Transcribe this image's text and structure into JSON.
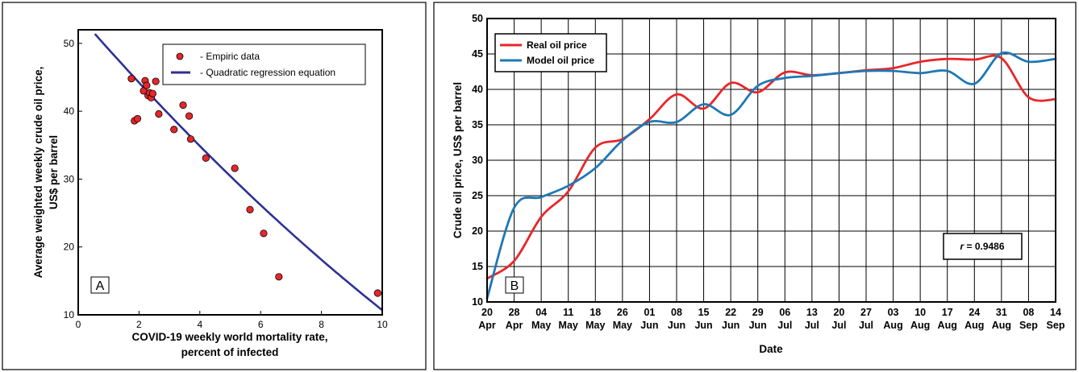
{
  "chart_data": [
    {
      "type": "scatter",
      "panel_label": "A",
      "xlabel_lines": [
        "COVID-19 weekly world mortality rate,",
        "percent of infected"
      ],
      "ylabel_lines": [
        "Average weighted weekly crude oil price,",
        "US$ per barrel"
      ],
      "xlim": [
        0,
        10
      ],
      "ylim": [
        10,
        52
      ],
      "xticks": [
        0,
        2,
        4,
        6,
        8,
        10
      ],
      "yticks": [
        10,
        20,
        30,
        40,
        50
      ],
      "grid": false,
      "legend_position": "top-right",
      "series": [
        {
          "name": "- Empiric data",
          "kind": "markers",
          "color": "#e8262a",
          "points": [
            [
              1.75,
              44.8
            ],
            [
              1.85,
              38.6
            ],
            [
              1.95,
              38.9
            ],
            [
              2.15,
              43.0
            ],
            [
              2.2,
              44.5
            ],
            [
              2.25,
              43.8
            ],
            [
              2.3,
              42.3
            ],
            [
              2.35,
              42.7
            ],
            [
              2.4,
              42.0
            ],
            [
              2.45,
              42.6
            ],
            [
              2.55,
              44.4
            ],
            [
              2.65,
              39.6
            ],
            [
              3.15,
              37.3
            ],
            [
              3.45,
              40.9
            ],
            [
              3.65,
              39.3
            ],
            [
              3.7,
              35.9
            ],
            [
              4.2,
              33.1
            ],
            [
              5.15,
              31.6
            ],
            [
              5.65,
              25.5
            ],
            [
              6.1,
              22.0
            ],
            [
              6.6,
              15.6
            ],
            [
              9.85,
              13.2
            ]
          ]
        },
        {
          "name": "- Quadratic regression equation",
          "kind": "curve",
          "color": "#2e3192",
          "quadratic": {
            "a": 0.08,
            "b": -5.15,
            "c": 54.2
          },
          "x_range": [
            0.55,
            10.0
          ]
        }
      ]
    },
    {
      "type": "line",
      "panel_label": "B",
      "xlabel": "Date",
      "ylabel": "Crude oil price, US$ per barrel",
      "ylim": [
        10,
        50
      ],
      "yticks": [
        10,
        15,
        20,
        25,
        30,
        35,
        40,
        45,
        50
      ],
      "grid": true,
      "legend_position": "top-left",
      "annotation": "r = 0.9486",
      "annotation_prefix": "r",
      "annotation_value": " = 0.9486",
      "categories": [
        [
          "20",
          "Apr"
        ],
        [
          "28",
          "Apr"
        ],
        [
          "04",
          "May"
        ],
        [
          "11",
          "May"
        ],
        [
          "18",
          "May"
        ],
        [
          "26",
          "May"
        ],
        [
          "01",
          "Jun"
        ],
        [
          "08",
          "Jun"
        ],
        [
          "15",
          "Jun"
        ],
        [
          "22",
          "Jun"
        ],
        [
          "29",
          "Jun"
        ],
        [
          "06",
          "Jul"
        ],
        [
          "13",
          "Jul"
        ],
        [
          "20",
          "Jul"
        ],
        [
          "27",
          "Jul"
        ],
        [
          "03",
          "Aug"
        ],
        [
          "10",
          "Aug"
        ],
        [
          "17",
          "Aug"
        ],
        [
          "24",
          "Aug"
        ],
        [
          "31",
          "Aug"
        ],
        [
          "08",
          "Sep"
        ],
        [
          "14",
          "Sep"
        ]
      ],
      "series": [
        {
          "name": "Real oil price",
          "color": "#e8262a",
          "values": [
            13.3,
            15.8,
            22.0,
            25.6,
            31.8,
            33.0,
            35.8,
            39.3,
            37.3,
            40.9,
            39.6,
            42.4,
            42.0,
            42.3,
            42.7,
            43.0,
            43.9,
            44.3,
            44.2,
            44.4,
            38.9,
            38.6
          ]
        },
        {
          "name": "Model oil price",
          "color": "#1f78b4",
          "values": [
            10.5,
            23.3,
            24.8,
            26.4,
            28.9,
            32.8,
            35.4,
            35.4,
            37.9,
            36.4,
            40.5,
            41.6,
            41.9,
            42.3,
            42.6,
            42.6,
            42.3,
            42.6,
            40.8,
            45.1,
            43.9,
            44.3
          ]
        }
      ]
    }
  ]
}
